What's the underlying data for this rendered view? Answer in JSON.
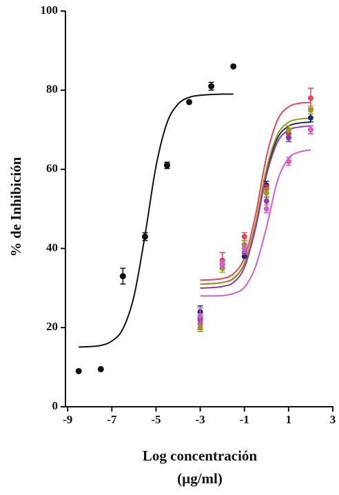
{
  "chart_data": {
    "type": "scatter",
    "ylabel": "% de Inhibición",
    "xlabel": [
      "Log concentración",
      "(µg/ml)"
    ],
    "xlim": [
      -9.1,
      3
    ],
    "xticks": [
      -9,
      -7,
      -5,
      -3,
      -1,
      1,
      3
    ],
    "ylim": [
      0,
      100
    ],
    "yticks": [
      0,
      20,
      40,
      60,
      80,
      100
    ],
    "grid": false,
    "series": [
      {
        "color": "#111111",
        "x": [
          -8.5,
          -7.5,
          -6.5,
          -5.5,
          -4.5,
          -3.5,
          -2.5,
          -1.5
        ],
        "values": [
          9,
          9.5,
          33,
          43,
          61,
          77,
          81,
          86
        ],
        "errors": [
          null,
          null,
          2,
          1,
          0.8,
          null,
          1,
          null
        ],
        "fit": {
          "x": [
            -8.5,
            -8,
            -7.5,
            -7,
            -6.5,
            -6,
            -5.5,
            -5,
            -4.5,
            -4,
            -3.5,
            -3,
            -2.5,
            -2,
            -1.5
          ],
          "values": [
            15.1,
            15.2,
            15.5,
            16.6,
            19.7,
            27.9,
            43.3,
            60.8,
            71.8,
            76.5,
            78.2,
            78.7,
            78.9,
            79,
            79
          ]
        }
      },
      {
        "color": "#1f2a6b",
        "x": [
          -3,
          -2,
          -1,
          0,
          1,
          2
        ],
        "values": [
          24,
          36,
          38,
          56,
          68,
          73
        ],
        "errors": [
          1.5,
          1,
          null,
          1,
          1,
          1
        ],
        "fit": {
          "x": [
            -3,
            -2.5,
            -2,
            -1.5,
            -1,
            -0.5,
            0,
            0.5,
            1,
            1.5,
            2
          ],
          "values": [
            31.0,
            31.1,
            31.4,
            32.4,
            36.2,
            46.0,
            59.5,
            67.9,
            70.9,
            71.7,
            71.9
          ]
        }
      },
      {
        "color": "#e8445a",
        "x": [
          -3,
          -2,
          -1,
          0,
          1,
          2
        ],
        "values": [
          21,
          37,
          43,
          55,
          69,
          78
        ],
        "errors": [
          1.5,
          2,
          1,
          1,
          1,
          2.5
        ],
        "fit": {
          "x": [
            -3,
            -2.5,
            -2,
            -1.5,
            -1,
            -0.5,
            0,
            0.5,
            1,
            1.5,
            2
          ],
          "values": [
            32.0,
            32.1,
            32.4,
            33.6,
            37.7,
            48.4,
            63.3,
            72.5,
            75.8,
            76.7,
            76.9
          ]
        }
      },
      {
        "color": "#9a9a1e",
        "x": [
          -3,
          -2,
          -1,
          0,
          1,
          2
        ],
        "values": [
          20,
          35,
          41,
          54,
          70,
          75
        ],
        "errors": [
          1,
          1,
          1,
          1,
          1,
          1
        ],
        "fit": {
          "x": [
            -3,
            -2.5,
            -2,
            -1.5,
            -1,
            -0.5,
            0,
            0.5,
            1,
            1.5,
            2
          ],
          "values": [
            31.0,
            31.1,
            31.4,
            32.5,
            36.3,
            46.3,
            60.2,
            68.8,
            71.9,
            72.7,
            72.9
          ]
        }
      },
      {
        "color": "#8a3f9e",
        "x": [
          -3,
          -2,
          -1,
          0,
          1,
          2
        ],
        "values": [
          22,
          36,
          39,
          52,
          68,
          70
        ],
        "errors": [
          1,
          1,
          null,
          1,
          1,
          1
        ],
        "fit": {
          "x": [
            -3,
            -2.5,
            -2,
            -1.5,
            -1,
            -0.5,
            0,
            0.5,
            1,
            1.5,
            2
          ],
          "values": [
            30.0,
            30.1,
            30.4,
            31.4,
            35.2,
            45.0,
            58.5,
            66.9,
            69.9,
            70.7,
            70.9
          ]
        }
      },
      {
        "color": "#d45fc8",
        "x": [
          -3,
          -2,
          -1,
          0,
          1,
          2
        ],
        "values": [
          23,
          36,
          40,
          50,
          62,
          70
        ],
        "errors": [
          2,
          1,
          1,
          1,
          1,
          1
        ],
        "fit": {
          "x": [
            -3,
            -2.5,
            -2,
            -1.5,
            -1,
            -0.5,
            0,
            0.5,
            1,
            1.5,
            2
          ],
          "values": [
            28.0,
            28.0,
            28.1,
            28.6,
            30.2,
            35.4,
            45.4,
            57.2,
            62.8,
            64.4,
            64.9
          ]
        }
      }
    ]
  }
}
